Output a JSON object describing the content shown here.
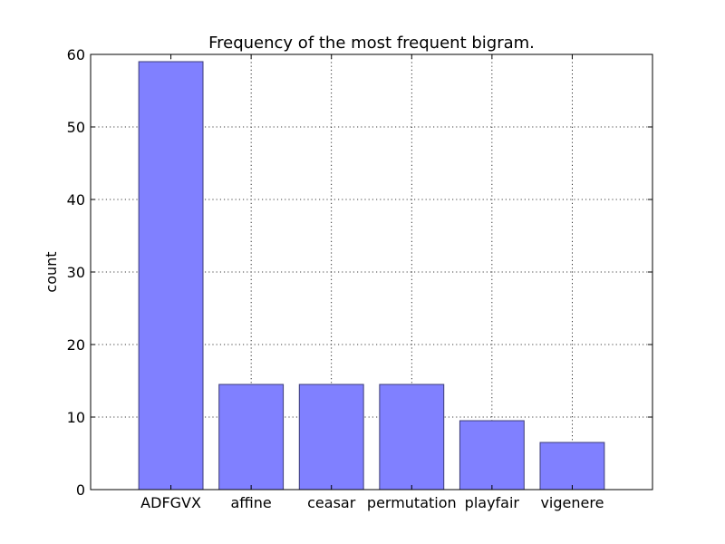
{
  "chart_data": {
    "type": "bar",
    "title": "Frequency of the most frequent bigram.",
    "xlabel": "",
    "ylabel": "count",
    "categories": [
      "ADFGVX",
      "affine",
      "ceasar",
      "permutation",
      "playfair",
      "vigenere"
    ],
    "values": [
      59,
      14.5,
      14.5,
      14.5,
      9.5,
      6.5
    ],
    "ylim": [
      0,
      60
    ],
    "yticks": [
      0,
      10,
      20,
      30,
      40,
      50,
      60
    ],
    "grid": true,
    "bar_color": "#8080ff",
    "bar_edge_color": "#3c3c78"
  }
}
